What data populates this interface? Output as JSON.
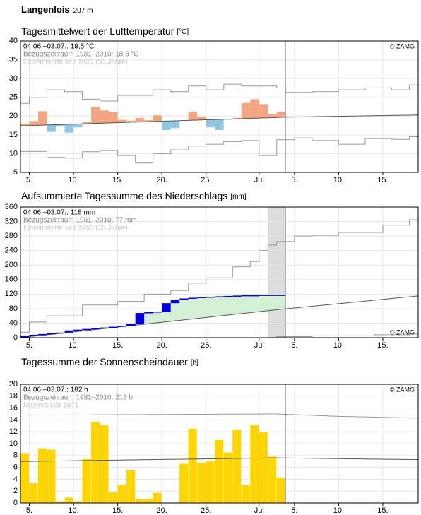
{
  "header": {
    "station": "Langenlois",
    "elevation": "207 m"
  },
  "chart_data": [
    {
      "type": "deviation",
      "title": "Tagesmittelwert der Lufttemperatur",
      "unit": "[°C]",
      "info": [
        "04.06.–03.07.: 19,5 °C",
        "Bezugszeitraum 1981–2010: 18,3 °C",
        "Extremwerte seit 1965 (55 Jahre)"
      ],
      "copyright": "© ZAMG",
      "xlim": [
        0,
        45
      ],
      "xticks": [
        {
          "value": 1,
          "label": "5."
        },
        {
          "value": 6,
          "label": "10."
        },
        {
          "value": 11,
          "label": "15."
        },
        {
          "value": 16,
          "label": "20."
        },
        {
          "value": 21,
          "label": "25."
        },
        {
          "value": 27,
          "label": "Jul"
        },
        {
          "value": 31,
          "label": "5."
        },
        {
          "value": 36,
          "label": "10."
        },
        {
          "value": 41,
          "label": "15."
        }
      ],
      "ylim": [
        5,
        40
      ],
      "yticks": [
        5,
        10,
        15,
        20,
        25,
        30,
        35,
        40
      ],
      "grid": true,
      "observed": {
        "x": [
          0,
          1,
          2,
          3,
          4,
          5,
          6,
          7,
          8,
          9,
          10,
          11,
          12,
          13,
          14,
          15,
          16,
          17,
          18,
          19,
          20,
          21,
          22,
          23,
          24,
          25,
          26,
          27,
          28,
          29
        ],
        "values": [
          18.0,
          18.7,
          21.3,
          15.8,
          17.2,
          15.6,
          17.0,
          18.5,
          22.5,
          21.5,
          21.0,
          19.0,
          18.8,
          19.5,
          18.9,
          20.2,
          16.3,
          16.8,
          18.8,
          21.2,
          19.8,
          17.0,
          16.3,
          19.0,
          19.5,
          23.5,
          24.5,
          23.2,
          20.5,
          21.2
        ],
        "colors": {
          "above": "#f4a582",
          "below": "#92c5de"
        }
      },
      "normal": {
        "x": [
          0,
          30,
          45
        ],
        "values": [
          17.4,
          19.7,
          20.3
        ],
        "color": "#555555"
      },
      "upper": {
        "x": [
          0,
          1,
          3,
          5,
          7,
          9,
          11,
          13,
          15,
          17,
          19,
          21,
          23,
          25,
          27,
          29,
          30,
          33,
          36,
          39,
          42,
          44
        ],
        "values": [
          23.4,
          25,
          27,
          26.5,
          24.5,
          24,
          25.5,
          25.5,
          27,
          26.5,
          28,
          27,
          28.5,
          28,
          28,
          27.5,
          26.3,
          26.5,
          27,
          27.5,
          27,
          28.3
        ],
        "color": "#999999"
      },
      "lower": {
        "x": [
          0,
          3,
          5,
          7,
          9,
          11,
          13,
          15,
          17,
          19,
          21,
          23,
          25,
          27,
          29,
          31,
          33,
          36,
          39,
          42,
          44
        ],
        "values": [
          10.6,
          9,
          8.8,
          10.5,
          10.8,
          9.5,
          7.5,
          10,
          11,
          12,
          12.5,
          13.2,
          13.5,
          9.5,
          13.7,
          14.2,
          13.5,
          12.5,
          14,
          13.8,
          14.5
        ],
        "color": "#999999"
      }
    },
    {
      "type": "cumulative",
      "title": "Aufsummierte Tagessumme des Niederschlags",
      "unit": "[mm]",
      "info": [
        "04.06.–03.07.: 118 mm",
        "Bezugszeitraum 1981–2010: 77 mm",
        "Extremwerte seit 1965 (55 Jahre)"
      ],
      "copyright": "© ZAMG",
      "xlim": [
        0,
        45
      ],
      "xticks": [
        {
          "value": 1,
          "label": "5."
        },
        {
          "value": 6,
          "label": "10."
        },
        {
          "value": 11,
          "label": "15."
        },
        {
          "value": 16,
          "label": "20."
        },
        {
          "value": 21,
          "label": "25."
        },
        {
          "value": 27,
          "label": "Jul"
        },
        {
          "value": 31,
          "label": "5."
        },
        {
          "value": 36,
          "label": "10."
        },
        {
          "value": 41,
          "label": "15."
        }
      ],
      "ylim": [
        0,
        360
      ],
      "yticks": [
        0,
        40,
        80,
        120,
        160,
        200,
        240,
        280,
        320,
        360
      ],
      "grid": true,
      "observed": {
        "x": [
          0,
          1,
          2,
          3,
          4,
          5,
          6,
          7,
          8,
          9,
          10,
          11,
          12,
          13,
          14,
          15,
          16,
          17,
          18,
          19,
          20,
          21,
          22,
          23,
          24,
          25,
          26,
          27,
          28,
          29
        ],
        "values": [
          6,
          8,
          10,
          12,
          14,
          20,
          22,
          24,
          26,
          28,
          30,
          33,
          38,
          68,
          70,
          72,
          95,
          105,
          108,
          110,
          112,
          113,
          114,
          115,
          116,
          117,
          117,
          118,
          118,
          118
        ],
        "color": "#0000dd",
        "fill": "#d4f0d4"
      },
      "normal": {
        "x": [
          0,
          29,
          45
        ],
        "values": [
          0,
          77,
          115
        ],
        "color": "#555555"
      },
      "upper": {
        "x": [
          0,
          1,
          3,
          7,
          11,
          14,
          17,
          19,
          21,
          24,
          26,
          27,
          28,
          29,
          31,
          33,
          36,
          41,
          44
        ],
        "values": [
          15,
          43,
          60,
          90,
          100,
          120,
          130,
          150,
          165,
          195,
          210,
          240,
          255,
          265,
          280,
          282,
          290,
          310,
          325
        ],
        "color": "#999999"
      },
      "lower": {
        "x": [
          0,
          29,
          33,
          40,
          44
        ],
        "values": [
          0,
          3,
          5,
          8,
          10
        ],
        "color": "#999999"
      }
    },
    {
      "type": "bar",
      "title": "Tagessumme der Sonnenscheindauer",
      "unit": "[h]",
      "info": [
        "04.06.–03.07.: 182 h",
        "Bezugszeitraum 1981–2010: 213 h",
        "Maxima seit 1971"
      ],
      "copyright": "© ZAMG",
      "xlim": [
        0,
        45
      ],
      "xticks": [
        {
          "value": 1,
          "label": "5."
        },
        {
          "value": 6,
          "label": "10."
        },
        {
          "value": 11,
          "label": "15."
        },
        {
          "value": 16,
          "label": "20."
        },
        {
          "value": 21,
          "label": "25."
        },
        {
          "value": 27,
          "label": "Jul"
        },
        {
          "value": 31,
          "label": "5."
        },
        {
          "value": 36,
          "label": "10."
        },
        {
          "value": 41,
          "label": "15."
        }
      ],
      "ylim": [
        0,
        20
      ],
      "yticks": [
        0,
        2,
        4,
        6,
        8,
        10,
        12,
        14,
        16,
        18,
        20
      ],
      "grid": true,
      "observed": {
        "x": [
          0,
          1,
          2,
          3,
          4,
          5,
          6,
          7,
          8,
          9,
          10,
          11,
          12,
          13,
          14,
          15,
          16,
          17,
          18,
          19,
          20,
          21,
          22,
          23,
          24,
          25,
          26,
          27,
          28,
          29
        ],
        "values": [
          8.4,
          3.4,
          9.2,
          9.0,
          0.3,
          0.9,
          0.3,
          7.4,
          13.6,
          13.1,
          1.8,
          3.0,
          5.6,
          0.6,
          0.7,
          1.7,
          0,
          0,
          6.6,
          12.5,
          6.8,
          7.0,
          10.6,
          8.5,
          12.4,
          3.0,
          13.1,
          11.9,
          7.8,
          4.2
        ],
        "color": "#ffd500"
      },
      "normal": {
        "x": [
          0,
          29,
          45
        ],
        "values": [
          7.0,
          7.6,
          7.3
        ],
        "color": "#555555"
      },
      "upper": {
        "x": [
          0,
          29,
          36,
          45
        ],
        "values": [
          14.8,
          15.0,
          14.6,
          14.3
        ],
        "color": "#999999"
      }
    }
  ]
}
